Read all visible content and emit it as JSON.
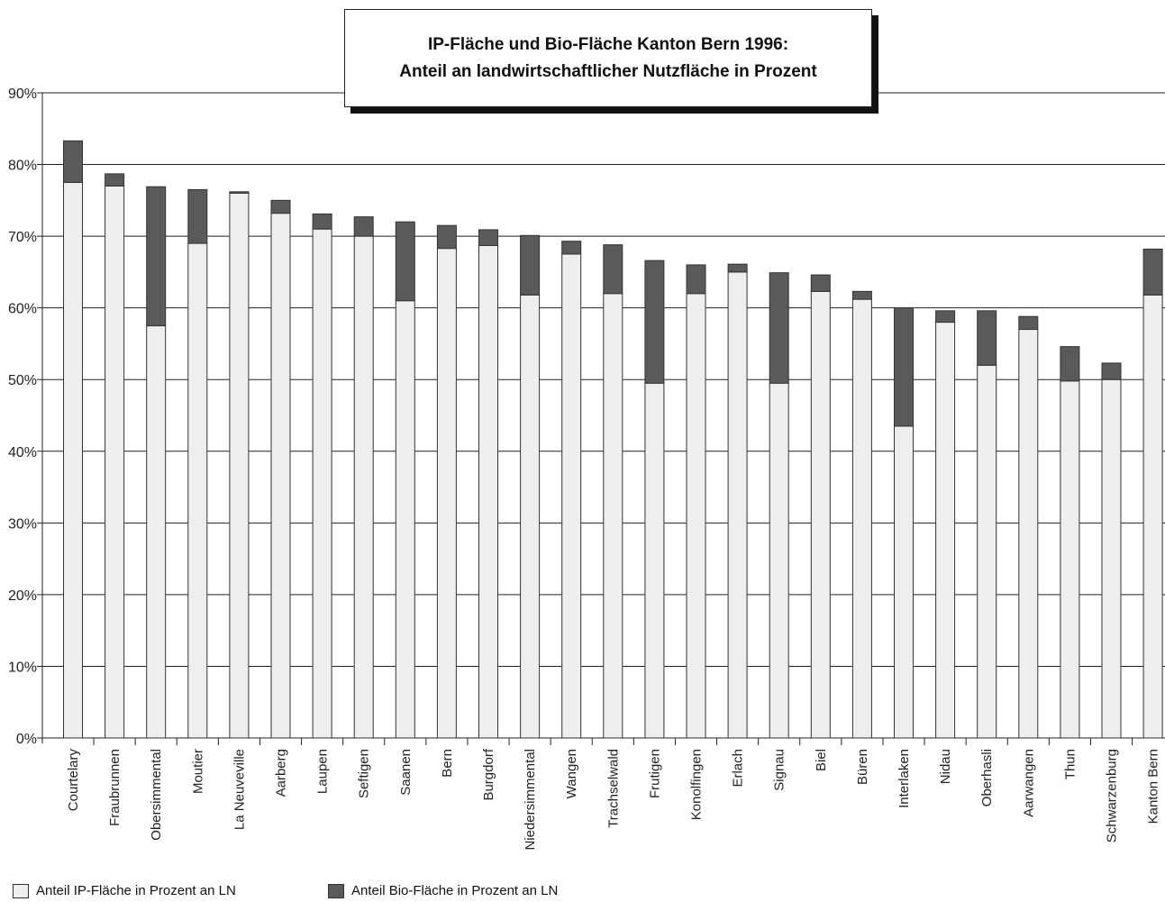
{
  "chart_data": {
    "type": "bar",
    "stacked": true,
    "title": "IP-Fläche und Bio-Fläche Kanton Bern 1996:",
    "subtitle": "Anteil an landwirtschaftlicher Nutzfläche in Prozent",
    "xlabel": "",
    "ylabel": "",
    "ylim": [
      0,
      90
    ],
    "yticks": [
      "0%",
      "10%",
      "20%",
      "30%",
      "40%",
      "50%",
      "60%",
      "70%",
      "80%",
      "90%"
    ],
    "grid": true,
    "legend_position": "bottom-left",
    "categories": [
      "Courtelary",
      "Fraubrunnen",
      "Obersimmental",
      "Moutier",
      "La Neuveville",
      "Aarberg",
      "Laupen",
      "Seftigen",
      "Saanen",
      "Bern",
      "Burgdorf",
      "Niedersimmental",
      "Wangen",
      "Trachselwald",
      "Frutigen",
      "Konolfingen",
      "Erlach",
      "Signau",
      "Biel",
      "Büren",
      "Interlaken",
      "Nidau",
      "Oberhasli",
      "Aarwangen",
      "Thun",
      "Schwarzenburg",
      "Kanton Bern"
    ],
    "series": [
      {
        "name": "Anteil IP-Fläche in Prozent an LN",
        "color": "#eeeeee",
        "values": [
          77.5,
          77.0,
          57.5,
          69.0,
          76.0,
          73.2,
          71.0,
          70.0,
          61.0,
          68.3,
          68.7,
          61.8,
          67.5,
          62.0,
          49.5,
          62.0,
          65.0,
          49.5,
          62.3,
          61.2,
          43.5,
          58.0,
          52.0,
          57.0,
          49.8,
          50.0,
          61.8
        ]
      },
      {
        "name": "Anteil Bio-Fläche in Prozent an LN",
        "color": "#5a5a5a",
        "values": [
          5.8,
          1.7,
          19.4,
          7.5,
          0.2,
          1.8,
          2.1,
          2.7,
          11.0,
          3.2,
          2.2,
          8.3,
          1.8,
          6.8,
          17.1,
          4.0,
          1.1,
          15.4,
          2.3,
          1.1,
          16.5,
          1.6,
          7.6,
          1.8,
          4.8,
          2.3,
          6.4
        ]
      }
    ]
  }
}
